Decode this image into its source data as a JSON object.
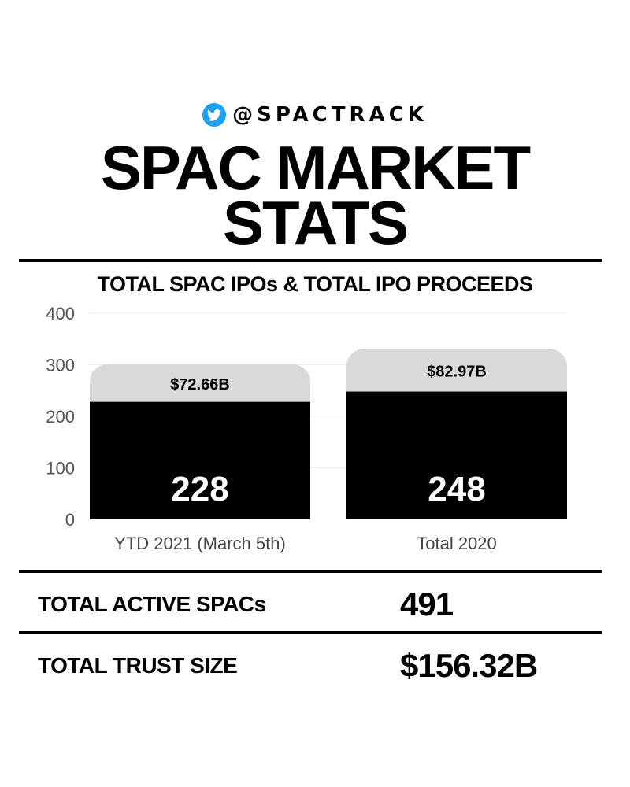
{
  "header": {
    "handle": "@SPACTRACK",
    "title_line1": "SPAC MARKET",
    "title_line2": "STATS"
  },
  "chart_data": {
    "type": "bar",
    "title": "TOTAL SPAC IPOs & TOTAL IPO PROCEEDS",
    "categories": [
      "YTD 2021 (March 5th)",
      "Total 2020"
    ],
    "series": [
      {
        "values": [
          228,
          248
        ],
        "labels": [
          "228",
          "248"
        ],
        "color": "#000000"
      },
      {
        "values": [
          72.66,
          82.97
        ],
        "labels": [
          "$72.66B",
          "$82.97B"
        ],
        "color": "#d9d9d9"
      }
    ],
    "yticks": [
      "0",
      "100",
      "200",
      "300",
      "400"
    ],
    "ylim": [
      0,
      400
    ],
    "grid": true
  },
  "stats": {
    "active_label": "TOTAL ACTIVE SPACs",
    "active_value": "491",
    "trust_label": "TOTAL TRUST SIZE",
    "trust_value": "$156.32B"
  },
  "colors": {
    "accent": "#1da1f2",
    "bar_primary": "#000000",
    "bar_secondary": "#d9d9d9"
  },
  "icons": {
    "brand": "twitter-bird-icon"
  }
}
